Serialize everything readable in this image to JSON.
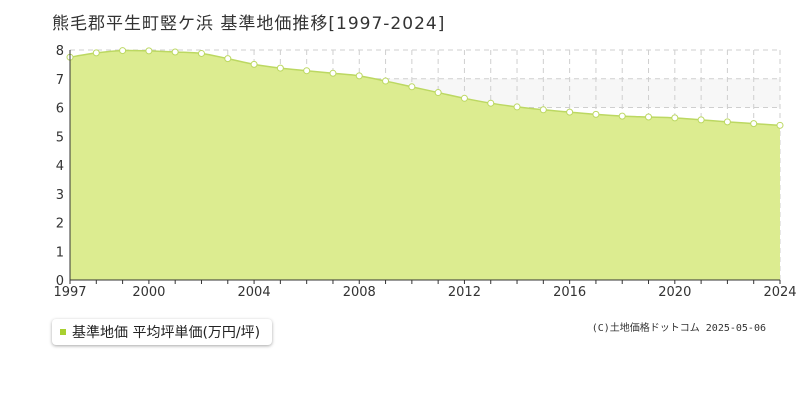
{
  "header": {
    "title": "熊毛郡平生町竪ケ浜 基準地価推移[1997-2024]"
  },
  "legend": {
    "label": "基準地価 平均坪単価(万円/坪)"
  },
  "footer": {
    "credit": "(C)土地価格ドットコム 2025-05-06"
  },
  "colors": {
    "fill": "#dcec90",
    "line": "#bcd862",
    "marker_fill": "#ffffff",
    "legend_swatch": "#a8d030",
    "grid": "#cfcfcf",
    "highlight_band": "#f7f7f7"
  },
  "chart_data": {
    "type": "area",
    "title": "熊毛郡平生町竪ケ浜 基準地価推移[1997-2024]",
    "xlabel": "",
    "ylabel": "",
    "xlim": [
      1997,
      2024
    ],
    "ylim": [
      0,
      8
    ],
    "x_ticks": [
      1997,
      2000,
      2004,
      2008,
      2012,
      2016,
      2020,
      2024
    ],
    "y_ticks": [
      0,
      1,
      2,
      3,
      4,
      5,
      6,
      7,
      8
    ],
    "grid": true,
    "legend_position": "bottom-left",
    "highlight_band": [
      6,
      7
    ],
    "series": [
      {
        "name": "基準地価 平均坪単価(万円/坪)",
        "x": [
          1997,
          1998,
          1999,
          2000,
          2001,
          2002,
          2003,
          2004,
          2005,
          2006,
          2007,
          2008,
          2009,
          2010,
          2011,
          2012,
          2013,
          2014,
          2015,
          2016,
          2017,
          2018,
          2019,
          2020,
          2021,
          2022,
          2023,
          2024
        ],
        "values": [
          7.75,
          7.9,
          7.98,
          7.97,
          7.93,
          7.88,
          7.7,
          7.5,
          7.37,
          7.28,
          7.19,
          7.1,
          6.92,
          6.72,
          6.52,
          6.32,
          6.15,
          6.02,
          5.92,
          5.84,
          5.76,
          5.7,
          5.67,
          5.64,
          5.57,
          5.5,
          5.44,
          5.38
        ]
      }
    ]
  }
}
